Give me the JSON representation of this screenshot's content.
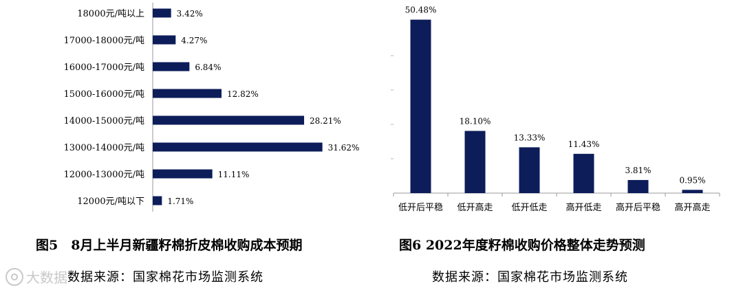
{
  "chart_data": [
    {
      "type": "bar",
      "orientation": "horizontal",
      "categories": [
        "18000元/吨以上",
        "17000-18000元/吨",
        "16000-17000元/吨",
        "15000-16000元/吨",
        "14000-15000元/吨",
        "13000-14000元/吨",
        "12000-13000元/吨",
        "12000元/吨以下"
      ],
      "values": [
        3.42,
        4.27,
        6.84,
        12.82,
        28.21,
        31.62,
        11.11,
        1.71
      ],
      "data_labels": [
        "3.42%",
        "4.27%",
        "6.84%",
        "12.82%",
        "28.21%",
        "31.62%",
        "11.11%",
        "1.71%"
      ],
      "xlim": [
        0,
        35
      ],
      "bar_color": "#0d1d5a",
      "title": "图5　8月上半月新疆籽棉折皮棉收购成本预期",
      "source": "数据来源：国家棉花市场监测系统"
    },
    {
      "type": "bar",
      "categories": [
        "低开后平稳",
        "低开高走",
        "低开低走",
        "高开低走",
        "高开后平稳",
        "高开高走"
      ],
      "values": [
        50.48,
        18.1,
        13.33,
        11.43,
        3.81,
        0.95
      ],
      "data_labels": [
        "50.48%",
        "18.10%",
        "13.33%",
        "11.43%",
        "3.81%",
        "0.95%"
      ],
      "ylim": [
        0,
        60
      ],
      "bar_color": "#0d1d5a",
      "title": "图6 2022年度籽棉收购价格整体走势预测",
      "source": "数据来源：国家棉花市场监测系统"
    }
  ],
  "watermark": {
    "text": "大数据",
    "logo_icon": "circle-logo-icon"
  }
}
